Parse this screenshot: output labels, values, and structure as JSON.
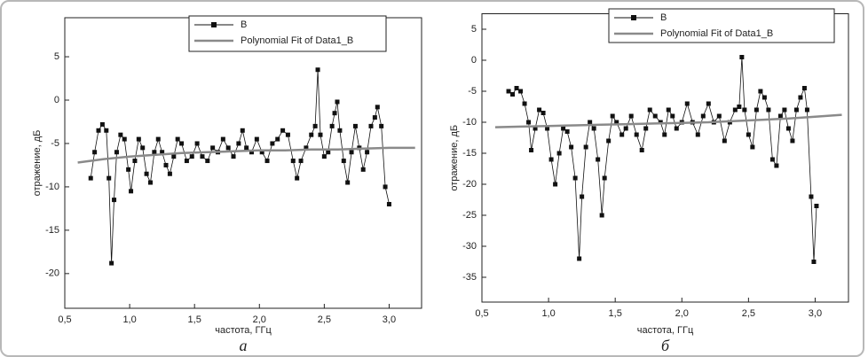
{
  "chart_data": [
    {
      "type": "line",
      "caption": "а",
      "xlabel": "частота, ГГц",
      "ylabel": "отражение, дБ",
      "xlim": [
        0.5,
        3.25
      ],
      "ylim": [
        -24,
        9.5
      ],
      "xticks": [
        {
          "value": 0.5,
          "label": "0,5"
        },
        {
          "value": 1.0,
          "label": "1,0"
        },
        {
          "value": 1.5,
          "label": "1,5"
        },
        {
          "value": 2.0,
          "label": "2,0"
        },
        {
          "value": 2.5,
          "label": "2,5"
        },
        {
          "value": 3.0,
          "label": "3,0"
        }
      ],
      "yticks": [
        -20,
        -15,
        -10,
        -5,
        0,
        5
      ],
      "series": [
        {
          "name": "B",
          "color": "#111111",
          "marker": "square",
          "x": [
            0.7,
            0.73,
            0.76,
            0.79,
            0.82,
            0.84,
            0.86,
            0.88,
            0.9,
            0.93,
            0.96,
            0.99,
            1.01,
            1.04,
            1.07,
            1.1,
            1.13,
            1.16,
            1.19,
            1.22,
            1.25,
            1.28,
            1.31,
            1.34,
            1.37,
            1.4,
            1.44,
            1.48,
            1.52,
            1.56,
            1.6,
            1.64,
            1.68,
            1.72,
            1.76,
            1.8,
            1.84,
            1.87,
            1.9,
            1.94,
            1.98,
            2.02,
            2.06,
            2.1,
            2.14,
            2.18,
            2.22,
            2.26,
            2.29,
            2.32,
            2.36,
            2.4,
            2.43,
            2.45,
            2.47,
            2.5,
            2.53,
            2.56,
            2.58,
            2.6,
            2.62,
            2.65,
            2.68,
            2.71,
            2.74,
            2.77,
            2.8,
            2.83,
            2.86,
            2.89,
            2.91,
            2.94,
            2.97,
            3.0
          ],
          "values": [
            -9,
            -6,
            -3.5,
            -2.8,
            -3.5,
            -9,
            -18.8,
            -11.5,
            -6,
            -4,
            -4.5,
            -8,
            -10.5,
            -7,
            -4.5,
            -5.5,
            -8.5,
            -9.5,
            -6,
            -4.5,
            -6,
            -7.5,
            -8.5,
            -6.5,
            -4.5,
            -5,
            -7,
            -6.5,
            -5,
            -6.5,
            -7,
            -5.5,
            -6,
            -4.5,
            -5.5,
            -6.5,
            -5,
            -3.5,
            -5.5,
            -6,
            -4.5,
            -6,
            -7,
            -5,
            -4.5,
            -3.5,
            -4,
            -7,
            -9,
            -7,
            -5.5,
            -4,
            -3,
            3.5,
            -4,
            -6.5,
            -6,
            -3,
            -1.5,
            -0.2,
            -3.5,
            -7,
            -9.5,
            -6,
            -3,
            -5.5,
            -8,
            -6,
            -3,
            -2,
            -0.8,
            -3,
            -10,
            -12
          ]
        },
        {
          "name": "Polynomial Fit of Data1_B",
          "color": "#8a8a8a",
          "marker": "none",
          "x": [
            0.6,
            0.8,
            1.0,
            1.2,
            1.4,
            1.6,
            1.8,
            2.0,
            2.2,
            2.4,
            2.6,
            2.8,
            3.0,
            3.2
          ],
          "values": [
            -7.2,
            -6.8,
            -6.5,
            -6.3,
            -6.1,
            -6.0,
            -5.9,
            -5.8,
            -5.8,
            -5.7,
            -5.7,
            -5.6,
            -5.5,
            -5.5
          ]
        }
      ]
    },
    {
      "type": "line",
      "caption": "б",
      "xlabel": "частота, ГГц",
      "ylabel": "отражение, дБ",
      "xlim": [
        0.5,
        3.25
      ],
      "ylim": [
        -39,
        7.5
      ],
      "xticks": [
        {
          "value": 0.5,
          "label": "0,5"
        },
        {
          "value": 1.0,
          "label": "1,0"
        },
        {
          "value": 1.5,
          "label": "1,5"
        },
        {
          "value": 2.0,
          "label": "2,0"
        },
        {
          "value": 2.5,
          "label": "2,5"
        },
        {
          "value": 3.0,
          "label": "3,0"
        }
      ],
      "yticks": [
        -35,
        -30,
        -25,
        -20,
        -15,
        -10,
        -5,
        0,
        5
      ],
      "series": [
        {
          "name": "B",
          "color": "#111111",
          "marker": "square",
          "x": [
            0.7,
            0.73,
            0.76,
            0.79,
            0.82,
            0.85,
            0.87,
            0.9,
            0.93,
            0.96,
            0.99,
            1.02,
            1.05,
            1.08,
            1.11,
            1.14,
            1.17,
            1.2,
            1.23,
            1.25,
            1.28,
            1.31,
            1.34,
            1.37,
            1.4,
            1.42,
            1.45,
            1.48,
            1.51,
            1.55,
            1.58,
            1.62,
            1.66,
            1.7,
            1.73,
            1.76,
            1.8,
            1.84,
            1.87,
            1.9,
            1.93,
            1.96,
            2.0,
            2.04,
            2.08,
            2.12,
            2.16,
            2.2,
            2.24,
            2.28,
            2.32,
            2.36,
            2.4,
            2.43,
            2.45,
            2.47,
            2.5,
            2.53,
            2.56,
            2.59,
            2.62,
            2.65,
            2.68,
            2.71,
            2.74,
            2.77,
            2.8,
            2.83,
            2.86,
            2.89,
            2.92,
            2.94,
            2.97,
            2.99,
            3.01
          ],
          "values": [
            -5,
            -5.5,
            -4.5,
            -5,
            -7,
            -10,
            -14.5,
            -11,
            -8,
            -8.5,
            -11,
            -16,
            -20,
            -15,
            -11,
            -11.5,
            -14,
            -19,
            -32,
            -22,
            -14,
            -10,
            -11,
            -16,
            -25,
            -19,
            -13,
            -9,
            -10,
            -12,
            -11,
            -9,
            -12,
            -14.5,
            -11,
            -8,
            -9,
            -10,
            -12,
            -8,
            -9,
            -11,
            -10,
            -7,
            -10,
            -12,
            -9,
            -7,
            -10,
            -9,
            -13,
            -10,
            -8,
            -7.5,
            0.5,
            -8,
            -12,
            -14,
            -8,
            -5,
            -6,
            -8,
            -16,
            -17,
            -9,
            -8,
            -11,
            -13,
            -8,
            -6,
            -4.5,
            -8,
            -22,
            -32.5,
            -23.5
          ]
        },
        {
          "name": "Polynomial Fit of Data1_B",
          "color": "#8a8a8a",
          "marker": "none",
          "x": [
            0.6,
            0.8,
            1.0,
            1.2,
            1.4,
            1.6,
            1.8,
            2.0,
            2.2,
            2.4,
            2.6,
            2.8,
            3.0,
            3.2
          ],
          "values": [
            -10.8,
            -10.7,
            -10.6,
            -10.5,
            -10.4,
            -10.3,
            -10.2,
            -10.1,
            -10.0,
            -9.8,
            -9.6,
            -9.4,
            -9.1,
            -8.8
          ]
        }
      ]
    }
  ]
}
